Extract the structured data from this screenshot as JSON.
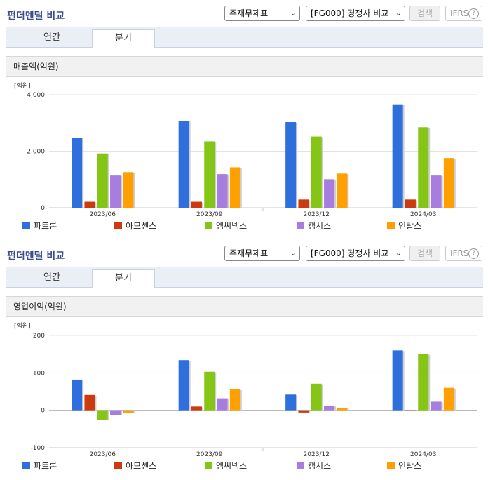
{
  "colors": {
    "series": [
      "#2f6fdd",
      "#cc3a10",
      "#85c516",
      "#a77de0",
      "#ff9f00"
    ]
  },
  "panels": [
    {
      "title": "펀더멘털 비교",
      "select1": "주재무제표",
      "select2": "[FG000] 경쟁사 비교",
      "search_button": "검색",
      "ifrs_label": "IFRS",
      "tabs": [
        "연간",
        "분기"
      ],
      "active_tab": "분기",
      "section_title": "매출액(억원)",
      "chart_data": {
        "type": "bar",
        "unit_label": "[억원]",
        "categories": [
          "2023/06",
          "2023/09",
          "2023/12",
          "2024/03"
        ],
        "ylim": [
          0,
          4000
        ],
        "yticks": [
          0,
          2000,
          4000
        ],
        "ytick_labels": [
          "0",
          "2,000",
          "4,000"
        ],
        "series": [
          {
            "name": "파트론",
            "values": [
              2480,
              3080,
              3030,
              3660
            ]
          },
          {
            "name": "아모센스",
            "values": [
              210,
              210,
              290,
              290
            ]
          },
          {
            "name": "엠씨넥스",
            "values": [
              1920,
              2350,
              2520,
              2850
            ]
          },
          {
            "name": "캠시스",
            "values": [
              1140,
              1190,
              1010,
              1140
            ]
          },
          {
            "name": "인탑스",
            "values": [
              1260,
              1430,
              1210,
              1760
            ]
          }
        ]
      }
    },
    {
      "title": "펀더멘털 비교",
      "select1": "주재무제표",
      "select2": "[FG000] 경쟁사 비교",
      "search_button": "검색",
      "ifrs_label": "IFRS",
      "tabs": [
        "연간",
        "분기"
      ],
      "active_tab": "분기",
      "section_title": "영업이익(억원)",
      "chart_data": {
        "type": "bar",
        "unit_label": "[억원]",
        "categories": [
          "2023/06",
          "2023/09",
          "2023/12",
          "2024/03"
        ],
        "ylim": [
          -100,
          200
        ],
        "yticks": [
          -100,
          0,
          100,
          200
        ],
        "ytick_labels": [
          "-100",
          "0",
          "100",
          "200"
        ],
        "series": [
          {
            "name": "파트론",
            "values": [
              82,
              134,
              42,
              160
            ]
          },
          {
            "name": "아모센스",
            "values": [
              41,
              10,
              -6,
              -2
            ]
          },
          {
            "name": "엠씨넥스",
            "values": [
              -26,
              103,
              71,
              150
            ]
          },
          {
            "name": "캠시스",
            "values": [
              -13,
              32,
              12,
              23
            ]
          },
          {
            "name": "인탑스",
            "values": [
              -8,
              56,
              6,
              60
            ]
          }
        ]
      }
    }
  ]
}
